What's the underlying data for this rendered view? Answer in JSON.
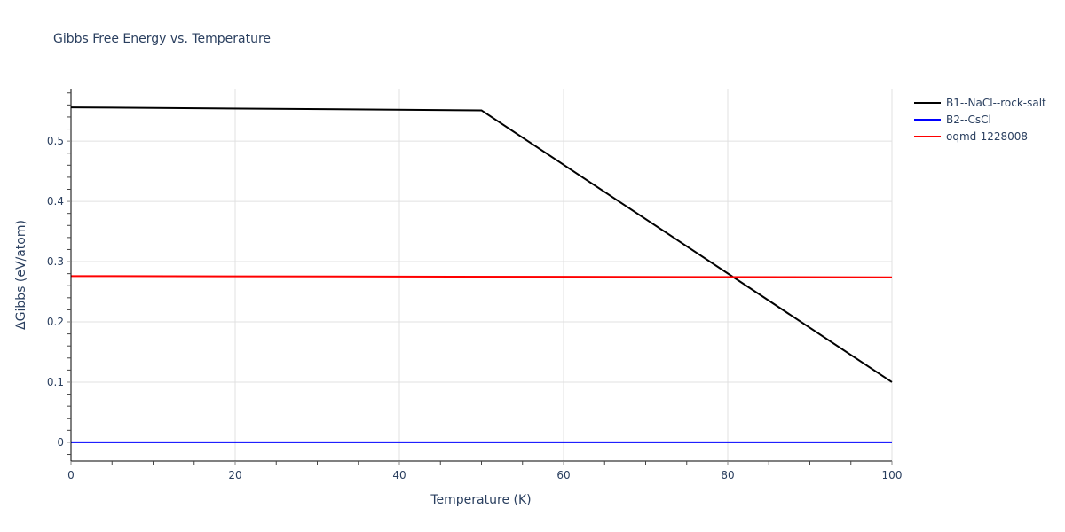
{
  "title": "Gibbs Free Energy vs. Temperature",
  "xaxis": {
    "title": "Temperature (K)",
    "ticks": [
      "0",
      "20",
      "40",
      "60",
      "80",
      "100"
    ]
  },
  "yaxis": {
    "title": "ΔGibbs (eV/atom)",
    "ticks": [
      "0",
      "0.1",
      "0.2",
      "0.3",
      "0.4",
      "0.5"
    ]
  },
  "legend": {
    "items": [
      {
        "label": "B1--NaCl--rock-salt",
        "color": "#000000"
      },
      {
        "label": "B2--CsCl",
        "color": "#0000ff"
      },
      {
        "label": "oqmd-1228008",
        "color": "#ff0000"
      }
    ]
  },
  "chart_data": {
    "type": "line",
    "title": "Gibbs Free Energy vs. Temperature",
    "xlabel": "Temperature (K)",
    "ylabel": "ΔGibbs (eV/atom)",
    "xlim": [
      0,
      100
    ],
    "ylim": [
      -0.031,
      0.587
    ],
    "grid": true,
    "legend_position": "top-right outside",
    "x_ticks": [
      0,
      20,
      40,
      60,
      80,
      100
    ],
    "y_ticks": [
      0,
      0.1,
      0.2,
      0.3,
      0.4,
      0.5
    ],
    "series": [
      {
        "name": "B1--NaCl--rock-salt",
        "color": "#000000",
        "x": [
          0,
          50,
          100
        ],
        "y": [
          0.556,
          0.551,
          0.1
        ]
      },
      {
        "name": "B2--CsCl",
        "color": "#0000ff",
        "x": [
          0,
          100
        ],
        "y": [
          0.0,
          0.0
        ]
      },
      {
        "name": "oqmd-1228008",
        "color": "#ff0000",
        "x": [
          0,
          100
        ],
        "y": [
          0.276,
          0.274
        ]
      }
    ]
  }
}
